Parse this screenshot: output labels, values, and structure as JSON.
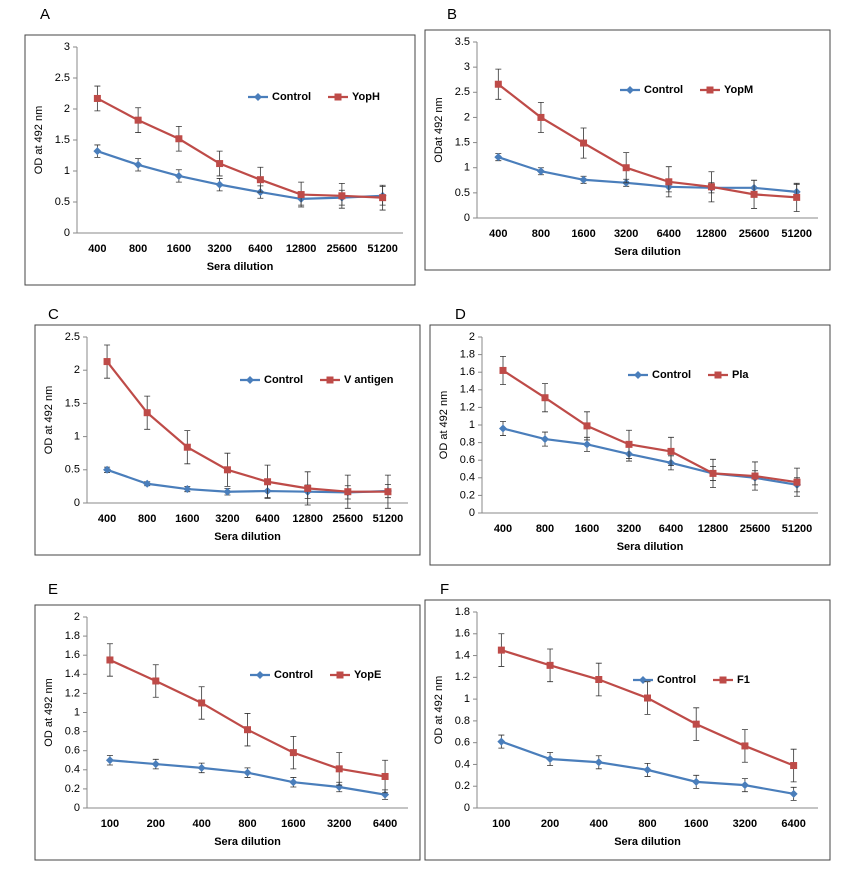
{
  "chart_data": [
    {
      "type": "line",
      "panel": "A",
      "x_label": "Sera dilution",
      "y_label": "OD at 492 nm",
      "categories": [
        "400",
        "800",
        "1600",
        "3200",
        "6400",
        "12800",
        "25600",
        "51200"
      ],
      "ylim": [
        0,
        3
      ],
      "yticks": [
        0,
        0.5,
        1,
        1.5,
        2,
        2.5,
        3
      ],
      "series": [
        {
          "name": "Control",
          "color": "#4a7ebb",
          "values": [
            1.32,
            1.1,
            0.92,
            0.78,
            0.66,
            0.55,
            0.57,
            0.6
          ],
          "error": [
            0.1,
            0.1,
            0.1,
            0.1,
            0.1,
            0.1,
            0.12,
            0.15
          ]
        },
        {
          "name": "YopH",
          "color": "#be4b48",
          "values": [
            2.17,
            1.82,
            1.52,
            1.12,
            0.86,
            0.62,
            0.6,
            0.57
          ],
          "error": [
            0.2,
            0.2,
            0.2,
            0.2,
            0.2,
            0.2,
            0.2,
            0.2
          ]
        }
      ]
    },
    {
      "type": "line",
      "panel": "B",
      "x_label": "Sera dilution",
      "y_label": "ODat 492 nm",
      "categories": [
        "400",
        "800",
        "1600",
        "3200",
        "6400",
        "12800",
        "25600",
        "51200"
      ],
      "ylim": [
        0,
        3.5
      ],
      "yticks": [
        0,
        0.5,
        1,
        1.5,
        2,
        2.5,
        3,
        3.5
      ],
      "series": [
        {
          "name": "Control",
          "color": "#4a7ebb",
          "values": [
            1.21,
            0.93,
            0.76,
            0.7,
            0.62,
            0.6,
            0.6,
            0.52
          ],
          "error": [
            0.07,
            0.07,
            0.07,
            0.07,
            0.1,
            0.1,
            0.15,
            0.15
          ]
        },
        {
          "name": "YopM",
          "color": "#be4b48",
          "values": [
            2.66,
            2.0,
            1.49,
            1.0,
            0.72,
            0.62,
            0.47,
            0.41
          ],
          "error": [
            0.3,
            0.3,
            0.3,
            0.3,
            0.3,
            0.3,
            0.28,
            0.28
          ]
        }
      ]
    },
    {
      "type": "line",
      "panel": "C",
      "x_label": "Sera dilution",
      "y_label": "OD at 492 nm",
      "categories": [
        "400",
        "800",
        "1600",
        "3200",
        "6400",
        "12800",
        "25600",
        "51200"
      ],
      "ylim": [
        0,
        2.5
      ],
      "yticks": [
        0,
        0.5,
        1,
        1.5,
        2,
        2.5
      ],
      "series": [
        {
          "name": "Control",
          "color": "#4a7ebb",
          "values": [
            0.5,
            0.29,
            0.21,
            0.17,
            0.18,
            0.17,
            0.16,
            0.18
          ],
          "error": [
            0.04,
            0.03,
            0.04,
            0.05,
            0.1,
            0.1,
            0.1,
            0.1
          ]
        },
        {
          "name": "V antigen",
          "color": "#be4b48",
          "values": [
            2.13,
            1.36,
            0.84,
            0.5,
            0.32,
            0.22,
            0.17,
            0.17
          ],
          "error": [
            0.25,
            0.25,
            0.25,
            0.25,
            0.25,
            0.25,
            0.25,
            0.25
          ]
        }
      ]
    },
    {
      "type": "line",
      "panel": "D",
      "x_label": "Sera dilution",
      "y_label": "OD at 492 nm",
      "categories": [
        "400",
        "800",
        "1600",
        "3200",
        "6400",
        "12800",
        "25600",
        "51200"
      ],
      "ylim": [
        0,
        2
      ],
      "yticks": [
        0,
        0.2,
        0.4,
        0.6,
        0.8,
        1,
        1.2,
        1.4,
        1.6,
        1.8,
        2
      ],
      "series": [
        {
          "name": "Control",
          "color": "#4a7ebb",
          "values": [
            0.96,
            0.84,
            0.78,
            0.67,
            0.57,
            0.45,
            0.4,
            0.32
          ],
          "error": [
            0.08,
            0.08,
            0.08,
            0.08,
            0.08,
            0.08,
            0.08,
            0.08
          ]
        },
        {
          "name": "Pla",
          "color": "#be4b48",
          "values": [
            1.62,
            1.31,
            0.99,
            0.78,
            0.7,
            0.45,
            0.42,
            0.35
          ],
          "error": [
            0.16,
            0.16,
            0.16,
            0.16,
            0.16,
            0.16,
            0.16,
            0.16
          ]
        }
      ]
    },
    {
      "type": "line",
      "panel": "E",
      "x_label": "Sera dilution",
      "y_label": "OD at 492  nm",
      "categories": [
        "100",
        "200",
        "400",
        "800",
        "1600",
        "3200",
        "6400"
      ],
      "ylim": [
        0,
        2
      ],
      "yticks": [
        0,
        0.2,
        0.4,
        0.6,
        0.8,
        1,
        1.2,
        1.4,
        1.6,
        1.8,
        2
      ],
      "series": [
        {
          "name": "Control",
          "color": "#4a7ebb",
          "values": [
            0.5,
            0.46,
            0.42,
            0.37,
            0.27,
            0.22,
            0.14
          ],
          "error": [
            0.05,
            0.05,
            0.05,
            0.05,
            0.05,
            0.05,
            0.05
          ]
        },
        {
          "name": "YopE",
          "color": "#be4b48",
          "values": [
            1.55,
            1.33,
            1.1,
            0.82,
            0.58,
            0.41,
            0.33
          ],
          "error": [
            0.17,
            0.17,
            0.17,
            0.17,
            0.17,
            0.17,
            0.17
          ]
        }
      ]
    },
    {
      "type": "line",
      "panel": "F",
      "x_label": "Sera dilution",
      "y_label": "OD at 492 nm",
      "categories": [
        "100",
        "200",
        "400",
        "800",
        "1600",
        "3200",
        "6400"
      ],
      "ylim": [
        0,
        1.8
      ],
      "yticks": [
        0,
        0.2,
        0.4,
        0.6,
        0.8,
        1,
        1.2,
        1.4,
        1.6,
        1.8
      ],
      "series": [
        {
          "name": "Control",
          "color": "#4a7ebb",
          "values": [
            0.61,
            0.45,
            0.42,
            0.35,
            0.24,
            0.21,
            0.13
          ],
          "error": [
            0.06,
            0.06,
            0.06,
            0.06,
            0.06,
            0.06,
            0.06
          ]
        },
        {
          "name": "F1",
          "color": "#be4b48",
          "values": [
            1.45,
            1.31,
            1.18,
            1.01,
            0.77,
            0.57,
            0.39
          ],
          "error": [
            0.15,
            0.15,
            0.15,
            0.15,
            0.15,
            0.15,
            0.15
          ]
        }
      ]
    }
  ]
}
